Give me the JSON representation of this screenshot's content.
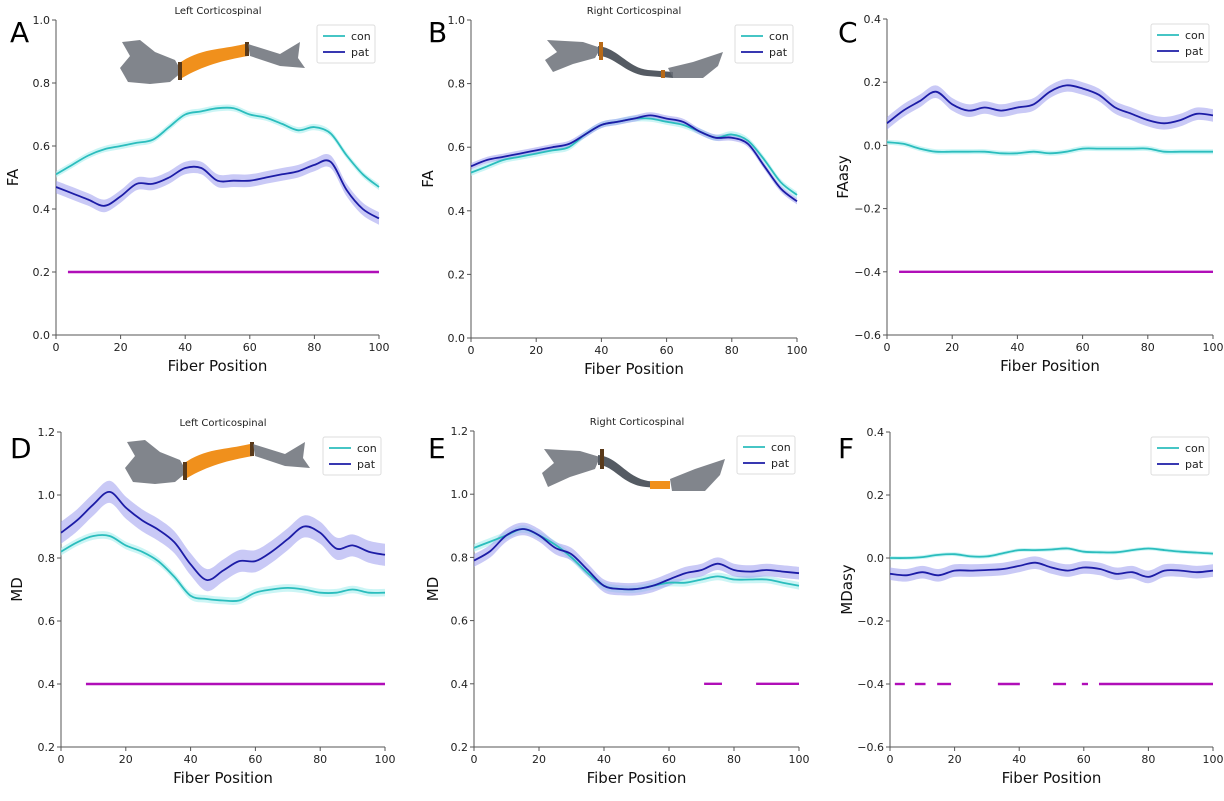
{
  "colors": {
    "con": "#2bbdbd",
    "pat": "#1c1ca6",
    "pat_band": "#9c9cee",
    "con_band": "#a8eeee",
    "significance": "#b00eb8",
    "tract_orange": "#f0901c",
    "tract_gray": "#6b7078"
  },
  "chart_data": [
    {
      "panel": "A",
      "type": "line",
      "title": "Left Corticospinal",
      "xlabel": "Fiber Position",
      "ylabel": "FA",
      "xlim": [
        0,
        100
      ],
      "ylim": [
        0.0,
        1.0
      ],
      "xticks": [
        "0",
        "20",
        "40",
        "60",
        "80",
        "100"
      ],
      "yticks": [
        "0.0",
        "0.2",
        "0.4",
        "0.6",
        "0.8",
        "1.0"
      ],
      "ytick_values": [
        0.0,
        0.2,
        0.4,
        0.6,
        0.8,
        1.0
      ],
      "legend": [
        "con",
        "pat"
      ],
      "legend_position": "top-right",
      "tract_highlight": "orange-middle",
      "x": [
        0,
        5,
        10,
        15,
        20,
        25,
        30,
        35,
        40,
        45,
        50,
        55,
        60,
        65,
        70,
        75,
        80,
        85,
        90,
        95,
        100
      ],
      "series": [
        {
          "name": "con",
          "values": [
            0.51,
            0.54,
            0.57,
            0.59,
            0.6,
            0.61,
            0.62,
            0.66,
            0.7,
            0.71,
            0.72,
            0.72,
            0.7,
            0.69,
            0.67,
            0.65,
            0.66,
            0.64,
            0.57,
            0.51,
            0.47
          ],
          "ci": 0.01
        },
        {
          "name": "pat",
          "values": [
            0.47,
            0.45,
            0.43,
            0.41,
            0.44,
            0.48,
            0.48,
            0.5,
            0.53,
            0.53,
            0.49,
            0.49,
            0.49,
            0.5,
            0.51,
            0.52,
            0.54,
            0.55,
            0.46,
            0.4,
            0.37
          ],
          "ci": 0.02
        }
      ],
      "significance": {
        "y": 0.2,
        "segments": [
          [
            3.7,
            100
          ]
        ]
      }
    },
    {
      "panel": "B",
      "type": "line",
      "title": "Right Corticospinal",
      "xlabel": "Fiber Position",
      "ylabel": "FA",
      "xlim": [
        0,
        100
      ],
      "ylim": [
        0.0,
        1.0
      ],
      "xticks": [
        "0",
        "20",
        "40",
        "60",
        "80",
        "100"
      ],
      "yticks": [
        "0.0",
        "0.2",
        "0.4",
        "0.6",
        "0.8",
        "1.0"
      ],
      "ytick_values": [
        0.0,
        0.2,
        0.4,
        0.6,
        0.8,
        1.0
      ],
      "legend": [
        "con",
        "pat"
      ],
      "legend_position": "top-right",
      "tract_highlight": "small-marks",
      "x": [
        0,
        5,
        10,
        15,
        20,
        25,
        30,
        35,
        40,
        45,
        50,
        55,
        60,
        65,
        70,
        75,
        80,
        85,
        90,
        95,
        100
      ],
      "series": [
        {
          "name": "con",
          "values": [
            0.52,
            0.54,
            0.56,
            0.57,
            0.58,
            0.59,
            0.6,
            0.64,
            0.67,
            0.68,
            0.69,
            0.69,
            0.68,
            0.67,
            0.65,
            0.63,
            0.64,
            0.62,
            0.56,
            0.49,
            0.45
          ],
          "ci": 0.01
        },
        {
          "name": "pat",
          "values": [
            0.54,
            0.56,
            0.57,
            0.58,
            0.59,
            0.6,
            0.61,
            0.64,
            0.67,
            0.68,
            0.69,
            0.7,
            0.69,
            0.68,
            0.65,
            0.63,
            0.63,
            0.61,
            0.54,
            0.47,
            0.43
          ],
          "ci": 0.01
        }
      ],
      "significance": {
        "y": 0.2,
        "segments": []
      }
    },
    {
      "panel": "C",
      "type": "line",
      "title": "",
      "xlabel": "Fiber Position",
      "ylabel": "FAasy",
      "xlim": [
        0,
        100
      ],
      "ylim": [
        -0.6,
        0.4
      ],
      "xticks": [
        "0",
        "20",
        "40",
        "60",
        "80",
        "100"
      ],
      "yticks": [
        "−0.6",
        "−0.4",
        "−0.2",
        "0.0",
        "0.2",
        "0.4"
      ],
      "ytick_values": [
        -0.6,
        -0.4,
        -0.2,
        0.0,
        0.2,
        0.4
      ],
      "legend": [
        "con",
        "pat"
      ],
      "legend_position": "top-right",
      "x": [
        0,
        5,
        10,
        15,
        20,
        25,
        30,
        35,
        40,
        45,
        50,
        55,
        60,
        65,
        70,
        75,
        80,
        85,
        90,
        95,
        100
      ],
      "series": [
        {
          "name": "con",
          "values": [
            0.01,
            0.005,
            -0.01,
            -0.02,
            -0.02,
            -0.02,
            -0.02,
            -0.025,
            -0.025,
            -0.02,
            -0.025,
            -0.02,
            -0.01,
            -0.01,
            -0.01,
            -0.01,
            -0.01,
            -0.02,
            -0.02,
            -0.02,
            -0.02
          ],
          "ci": 0.008
        },
        {
          "name": "pat",
          "values": [
            0.07,
            0.11,
            0.14,
            0.17,
            0.13,
            0.11,
            0.12,
            0.11,
            0.12,
            0.13,
            0.17,
            0.19,
            0.18,
            0.16,
            0.12,
            0.1,
            0.08,
            0.07,
            0.08,
            0.1,
            0.095
          ],
          "ci": 0.02
        }
      ],
      "significance": {
        "y": -0.4,
        "segments": [
          [
            3.7,
            100
          ]
        ]
      }
    },
    {
      "panel": "D",
      "type": "line",
      "title": "Left Corticospinal",
      "xlabel": "Fiber Position",
      "ylabel": "MD",
      "xlim": [
        0,
        100
      ],
      "ylim": [
        0.2,
        1.2
      ],
      "xticks": [
        "0",
        "20",
        "40",
        "60",
        "80",
        "100"
      ],
      "yticks": [
        "0.2",
        "0.4",
        "0.6",
        "0.8",
        "1.0",
        "1.2"
      ],
      "ytick_values": [
        0.2,
        0.4,
        0.6,
        0.8,
        1.0,
        1.2
      ],
      "legend": [
        "con",
        "pat"
      ],
      "legend_position": "top-right",
      "tract_highlight": "orange-middle",
      "x": [
        0,
        5,
        10,
        15,
        20,
        25,
        30,
        35,
        40,
        45,
        50,
        55,
        60,
        65,
        70,
        75,
        80,
        85,
        90,
        95,
        100
      ],
      "series": [
        {
          "name": "con",
          "values": [
            0.82,
            0.85,
            0.87,
            0.87,
            0.84,
            0.82,
            0.79,
            0.74,
            0.68,
            0.67,
            0.665,
            0.665,
            0.69,
            0.7,
            0.705,
            0.7,
            0.69,
            0.69,
            0.7,
            0.69,
            0.69
          ],
          "ci": 0.012
        },
        {
          "name": "pat",
          "values": [
            0.88,
            0.92,
            0.97,
            1.01,
            0.96,
            0.92,
            0.89,
            0.85,
            0.78,
            0.73,
            0.76,
            0.79,
            0.79,
            0.82,
            0.86,
            0.9,
            0.88,
            0.83,
            0.84,
            0.82,
            0.81
          ],
          "ci": 0.035
        }
      ],
      "significance": {
        "y": 0.4,
        "segments": [
          [
            7.7,
            100
          ]
        ]
      }
    },
    {
      "panel": "E",
      "type": "line",
      "title": "Right Corticospinal",
      "xlabel": "Fiber Position",
      "ylabel": "MD",
      "xlim": [
        0,
        100
      ],
      "ylim": [
        0.2,
        1.2
      ],
      "xticks": [
        "0",
        "20",
        "40",
        "60",
        "80",
        "100"
      ],
      "yticks": [
        "0.2",
        "0.4",
        "0.6",
        "0.8",
        "1.0",
        "1.2"
      ],
      "ytick_values": [
        0.2,
        0.4,
        0.6,
        0.8,
        1.0,
        1.2
      ],
      "legend": [
        "con",
        "pat"
      ],
      "legend_position": "top-right",
      "tract_highlight": "orange-lower",
      "x": [
        0,
        5,
        10,
        15,
        20,
        25,
        30,
        35,
        40,
        45,
        50,
        55,
        60,
        65,
        70,
        75,
        80,
        85,
        90,
        95,
        100
      ],
      "series": [
        {
          "name": "con",
          "values": [
            0.83,
            0.85,
            0.87,
            0.89,
            0.87,
            0.84,
            0.8,
            0.75,
            0.71,
            0.7,
            0.7,
            0.71,
            0.72,
            0.72,
            0.73,
            0.74,
            0.73,
            0.73,
            0.73,
            0.72,
            0.71
          ],
          "ci": 0.012
        },
        {
          "name": "pat",
          "values": [
            0.79,
            0.82,
            0.87,
            0.89,
            0.87,
            0.83,
            0.81,
            0.76,
            0.71,
            0.7,
            0.7,
            0.71,
            0.73,
            0.75,
            0.76,
            0.78,
            0.76,
            0.755,
            0.76,
            0.755,
            0.75
          ],
          "ci": 0.02
        }
      ],
      "significance": {
        "y": 0.4,
        "segments": [
          [
            70.8,
            76.3
          ],
          [
            86.8,
            100
          ]
        ]
      }
    },
    {
      "panel": "F",
      "type": "line",
      "title": "",
      "xlabel": "Fiber Position",
      "ylabel": "MDasy",
      "xlim": [
        0,
        100
      ],
      "ylim": [
        -0.6,
        0.4
      ],
      "xticks": [
        "0",
        "20",
        "40",
        "60",
        "80",
        "100"
      ],
      "yticks": [
        "−0.6",
        "−0.4",
        "−0.2",
        "0.0",
        "0.2",
        "0.4"
      ],
      "ytick_values": [
        -0.6,
        -0.4,
        -0.2,
        0.0,
        0.2,
        0.4
      ],
      "legend": [
        "con",
        "pat"
      ],
      "legend_position": "top-right",
      "x": [
        0,
        5,
        10,
        15,
        20,
        25,
        30,
        35,
        40,
        45,
        50,
        55,
        60,
        65,
        70,
        75,
        80,
        85,
        90,
        95,
        100
      ],
      "series": [
        {
          "name": "con",
          "values": [
            0.0,
            0.0,
            0.003,
            0.01,
            0.012,
            0.005,
            0.005,
            0.015,
            0.025,
            0.025,
            0.027,
            0.03,
            0.02,
            0.018,
            0.018,
            0.025,
            0.03,
            0.025,
            0.02,
            0.017,
            0.014
          ],
          "ci": 0.006
        },
        {
          "name": "pat",
          "values": [
            -0.05,
            -0.055,
            -0.045,
            -0.055,
            -0.04,
            -0.04,
            -0.038,
            -0.035,
            -0.025,
            -0.015,
            -0.03,
            -0.04,
            -0.03,
            -0.035,
            -0.05,
            -0.045,
            -0.06,
            -0.04,
            -0.04,
            -0.045,
            -0.04
          ],
          "ci": 0.02
        }
      ],
      "significance": {
        "y": -0.4,
        "segments": [
          [
            1.5,
            4.6
          ],
          [
            7.7,
            11.0
          ],
          [
            14.6,
            18.9
          ],
          [
            33.4,
            40.2
          ],
          [
            50.5,
            54.5
          ],
          [
            59.4,
            61.3
          ],
          [
            64.7,
            100
          ]
        ]
      }
    }
  ]
}
